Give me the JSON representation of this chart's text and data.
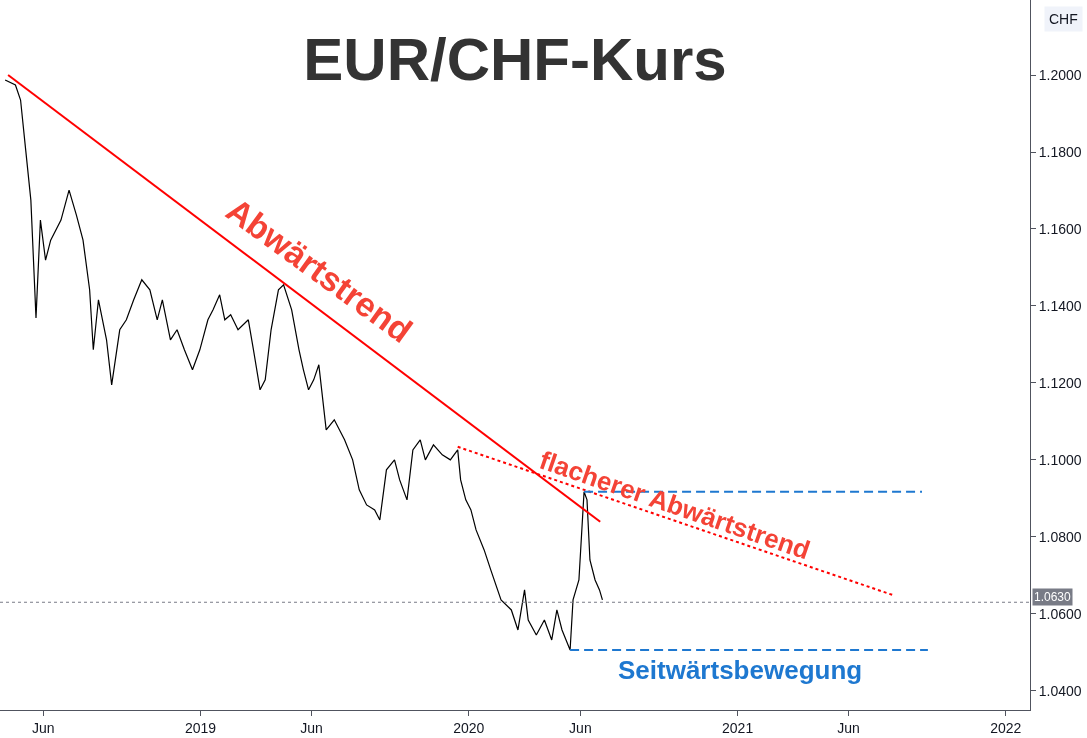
{
  "chart_data": {
    "type": "line",
    "title": "EUR/CHF-Kurs",
    "ylabel": "CHF",
    "xlim": [
      "2018-04-03",
      "2022-02-03"
    ],
    "xticks": [
      {
        "value": "2018-06-01",
        "label": "Jun"
      },
      {
        "value": "2019-01-01",
        "label": "2019"
      },
      {
        "value": "2019-06-01",
        "label": "Jun"
      },
      {
        "value": "2020-01-01",
        "label": "2020"
      },
      {
        "value": "2020-06-01",
        "label": "Jun"
      },
      {
        "value": "2021-01-01",
        "label": "2021"
      },
      {
        "value": "2021-06-01",
        "label": "Jun"
      },
      {
        "value": "2022-01-01",
        "label": "2022"
      }
    ],
    "ylim": [
      1.035,
      1.2195
    ],
    "yticks": [
      {
        "value": 1.04,
        "label": "1.0400"
      },
      {
        "value": 1.06,
        "label": "1.0600"
      },
      {
        "value": 1.08,
        "label": "1.0800"
      },
      {
        "value": 1.1,
        "label": "1.1000"
      },
      {
        "value": 1.12,
        "label": "1.1200"
      },
      {
        "value": 1.14,
        "label": "1.1400"
      },
      {
        "value": 1.16,
        "label": "1.1600"
      },
      {
        "value": 1.18,
        "label": "1.1800"
      },
      {
        "value": 1.2,
        "label": "1.2000"
      }
    ],
    "grid": false,
    "marker": "none",
    "series": [
      {
        "color": "#000000",
        "line_style": "solid",
        "x": [
          "2018-04-10",
          "2018-04-24",
          "2018-05-01",
          "2018-05-08",
          "2018-05-15",
          "2018-05-22",
          "2018-05-28",
          "2018-06-04",
          "2018-06-11",
          "2018-06-25",
          "2018-07-06",
          "2018-07-16",
          "2018-07-25",
          "2018-08-03",
          "2018-08-08",
          "2018-08-15",
          "2018-08-26",
          "2018-09-02",
          "2018-09-13",
          "2018-09-22",
          "2018-10-02",
          "2018-10-13",
          "2018-10-24",
          "2018-11-03",
          "2018-11-10",
          "2018-11-21",
          "2018-11-30",
          "2018-12-10",
          "2018-12-21",
          "2018-12-31",
          "2019-01-11",
          "2019-01-18",
          "2019-01-27",
          "2019-02-03",
          "2019-02-11",
          "2019-02-21",
          "2019-03-07",
          "2019-03-14",
          "2019-03-23",
          "2019-03-30",
          "2019-04-07",
          "2019-04-17",
          "2019-04-24",
          "2019-05-05",
          "2019-05-15",
          "2019-05-21",
          "2019-05-28",
          "2019-06-04",
          "2019-06-11",
          "2019-06-21",
          "2019-07-02",
          "2019-07-16",
          "2019-07-27",
          "2019-08-05",
          "2019-08-15",
          "2019-08-26",
          "2019-09-02",
          "2019-09-11",
          "2019-09-22",
          "2019-09-29",
          "2019-10-09",
          "2019-10-17",
          "2019-10-27",
          "2019-11-03",
          "2019-11-14",
          "2019-11-26",
          "2019-12-07",
          "2019-12-17",
          "2019-12-21",
          "2019-12-28",
          "2020-01-04",
          "2020-01-11",
          "2020-01-22",
          "2020-01-31",
          "2020-02-14",
          "2020-02-28",
          "2020-03-08",
          "2020-03-17",
          "2020-03-22",
          "2020-04-02",
          "2020-04-13",
          "2020-04-23",
          "2020-04-30",
          "2020-05-07",
          "2020-05-18",
          "2020-05-22",
          "2020-05-30",
          "2020-06-06",
          "2020-06-10",
          "2020-06-14",
          "2020-06-21",
          "2020-06-27",
          "2020-07-01"
        ],
        "values": [
          1.1987,
          1.1974,
          1.1935,
          1.1805,
          1.1675,
          1.1369,
          1.1623,
          1.1519,
          1.1571,
          1.1623,
          1.1701,
          1.1636,
          1.1571,
          1.1442,
          1.1286,
          1.1416,
          1.1312,
          1.1195,
          1.1338,
          1.1364,
          1.1416,
          1.1468,
          1.1442,
          1.1364,
          1.1416,
          1.1312,
          1.1338,
          1.1286,
          1.1234,
          1.1286,
          1.1364,
          1.139,
          1.1429,
          1.1364,
          1.1377,
          1.1338,
          1.1364,
          1.1286,
          1.1182,
          1.1208,
          1.1338,
          1.1442,
          1.1455,
          1.139,
          1.1286,
          1.1234,
          1.1182,
          1.1208,
          1.1247,
          1.1078,
          1.1104,
          1.1052,
          1.1,
          1.0922,
          1.0883,
          1.087,
          1.0844,
          1.0974,
          1.1,
          1.0948,
          1.0896,
          1.1026,
          1.1052,
          1.1,
          1.1039,
          1.1013,
          1.1,
          1.1026,
          1.0948,
          1.0896,
          1.087,
          1.0818,
          1.0766,
          1.0714,
          1.0636,
          1.061,
          1.0558,
          1.0662,
          1.0584,
          1.0545,
          1.0584,
          1.0532,
          1.061,
          1.0558,
          1.0506,
          1.0636,
          1.0688,
          1.0917,
          1.0896,
          1.074,
          1.0688,
          1.0662,
          1.0636
        ]
      },
      {
        "color": "#ff0000",
        "line_style": "solid",
        "x": [
          "2018-04-14",
          "2020-06-28"
        ],
        "values": [
          1.2,
          1.0839
        ]
      },
      {
        "color": "#ff0000",
        "line_style": "dotted",
        "x": [
          "2019-12-17",
          "2021-08-03"
        ],
        "values": [
          1.1034,
          1.0647
        ]
      },
      {
        "color": "#1e78d0",
        "line_style": "dashed",
        "x": [
          "2020-06-06",
          "2021-09-09"
        ],
        "values": [
          1.0917,
          1.0917
        ]
      },
      {
        "color": "#1e78d0",
        "line_style": "dashed",
        "x": [
          "2020-05-18",
          "2021-09-17"
        ],
        "values": [
          1.0506,
          1.0506
        ]
      }
    ],
    "ref_lines": [
      {
        "axis": "y",
        "value": 1.063,
        "label": "1.0630",
        "color": "#787b86",
        "line_style": "dotted"
      }
    ],
    "annotations": [
      "Abwärtstrend",
      "flacherer Abwärtstrend",
      "Seitwärtsbewegung"
    ]
  }
}
